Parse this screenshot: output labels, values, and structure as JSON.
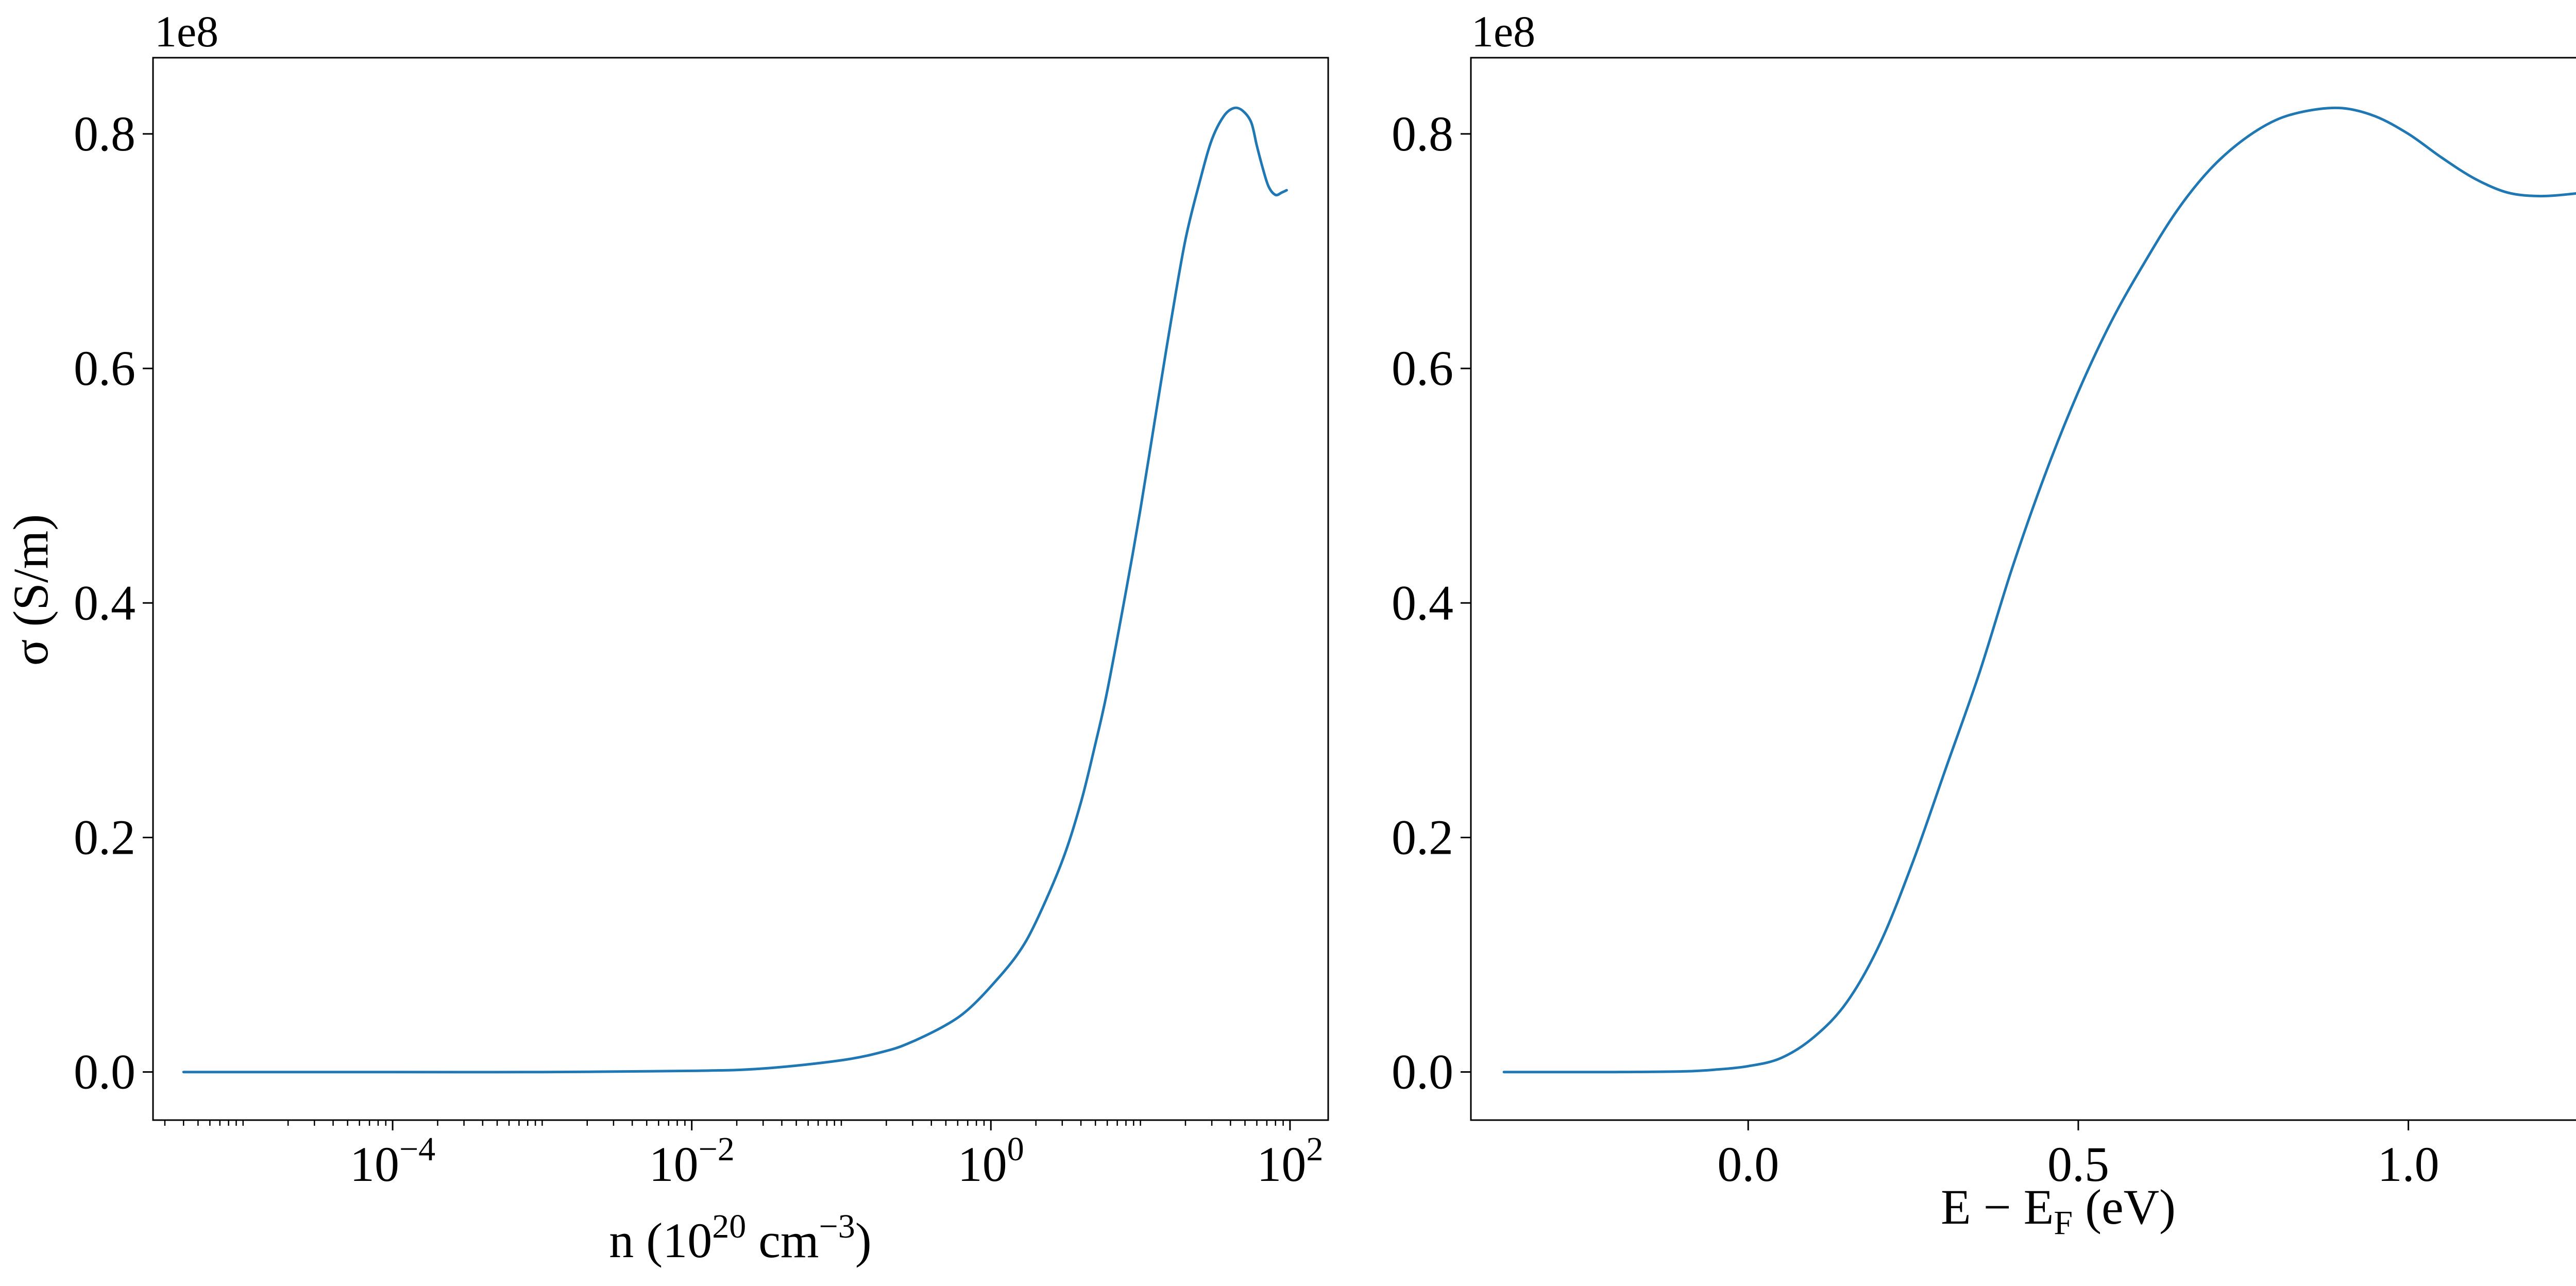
{
  "figure": {
    "background": "#ffffff",
    "line_color": "#1f77b4"
  },
  "chart_data": [
    {
      "type": "line",
      "title": "",
      "xlabel": {
        "base": "n (10",
        "sup1": "20",
        "mid": " cm",
        "sup2": "−3",
        "end": ")"
      },
      "ylabel": "σ (S/m)",
      "x_scale": "log",
      "y_offset_label": "1e8",
      "xlim": [
        2.5e-06,
        180
      ],
      "ylim": [
        -0.041,
        0.865
      ],
      "x_ticks": [
        {
          "value": 0.0001,
          "base": "10",
          "exp": "−4"
        },
        {
          "value": 0.01,
          "base": "10",
          "exp": "−2"
        },
        {
          "value": 1,
          "base": "10",
          "exp": "0"
        },
        {
          "value": 100,
          "base": "10",
          "exp": "2"
        }
      ],
      "y_ticks": [
        {
          "value": 0.0,
          "label": "0.0"
        },
        {
          "value": 0.2,
          "label": "0.2"
        },
        {
          "value": 0.4,
          "label": "0.4"
        },
        {
          "value": 0.6,
          "label": "0.6"
        },
        {
          "value": 0.8,
          "label": "0.8"
        }
      ],
      "grid": false,
      "series": [
        {
          "x": [
            4e-06,
            0.0001,
            0.001,
            0.01,
            0.03,
            0.1,
            0.2,
            0.3,
            0.5,
            0.7,
            1.0,
            1.5,
            2.0,
            3.0,
            4.0,
            5.0,
            6.0,
            8.0,
            10.0,
            13.0,
            16.0,
            20.0,
            25.0,
            30.0,
            36.0,
            42.0,
            48.0,
            55.0,
            60.0,
            66.0,
            72.0,
            80.0,
            88.0,
            95.0
          ],
          "y": [
            0.0,
            0.0,
            0.0,
            0.001,
            0.003,
            0.01,
            0.018,
            0.026,
            0.04,
            0.053,
            0.073,
            0.1,
            0.128,
            0.18,
            0.23,
            0.28,
            0.325,
            0.41,
            0.48,
            0.57,
            0.64,
            0.71,
            0.76,
            0.795,
            0.815,
            0.822,
            0.82,
            0.81,
            0.79,
            0.77,
            0.755,
            0.748,
            0.75,
            0.752
          ]
        }
      ]
    },
    {
      "type": "line",
      "title": "",
      "xlabel": {
        "base": "E − E",
        "sub": "F",
        "end": " (eV)"
      },
      "ylabel": "",
      "x_scale": "linear",
      "y_offset_label": "1e8",
      "xlim": [
        -0.42,
        1.36
      ],
      "ylim": [
        -0.041,
        0.865
      ],
      "x_ticks": [
        {
          "value": 0.0,
          "label": "0.0"
        },
        {
          "value": 0.5,
          "label": "0.5"
        },
        {
          "value": 1.0,
          "label": "1.0"
        }
      ],
      "y_ticks": [
        {
          "value": 0.0,
          "label": "0.0"
        },
        {
          "value": 0.2,
          "label": "0.2"
        },
        {
          "value": 0.4,
          "label": "0.4"
        },
        {
          "value": 0.6,
          "label": "0.6"
        },
        {
          "value": 0.8,
          "label": "0.8"
        }
      ],
      "grid": false,
      "series": [
        {
          "x": [
            -0.37,
            -0.3,
            -0.2,
            -0.1,
            -0.05,
            0.0,
            0.05,
            0.1,
            0.15,
            0.2,
            0.25,
            0.3,
            0.35,
            0.4,
            0.45,
            0.5,
            0.55,
            0.6,
            0.65,
            0.7,
            0.75,
            0.8,
            0.85,
            0.9,
            0.95,
            1.0,
            1.05,
            1.1,
            1.15,
            1.2,
            1.25,
            1.29
          ],
          "y": [
            0.0,
            0.0,
            0.0,
            0.0005,
            0.002,
            0.005,
            0.012,
            0.03,
            0.06,
            0.11,
            0.18,
            0.26,
            0.34,
            0.43,
            0.51,
            0.58,
            0.64,
            0.69,
            0.735,
            0.77,
            0.795,
            0.812,
            0.82,
            0.822,
            0.815,
            0.8,
            0.78,
            0.762,
            0.75,
            0.747,
            0.749,
            0.752
          ]
        }
      ]
    }
  ]
}
